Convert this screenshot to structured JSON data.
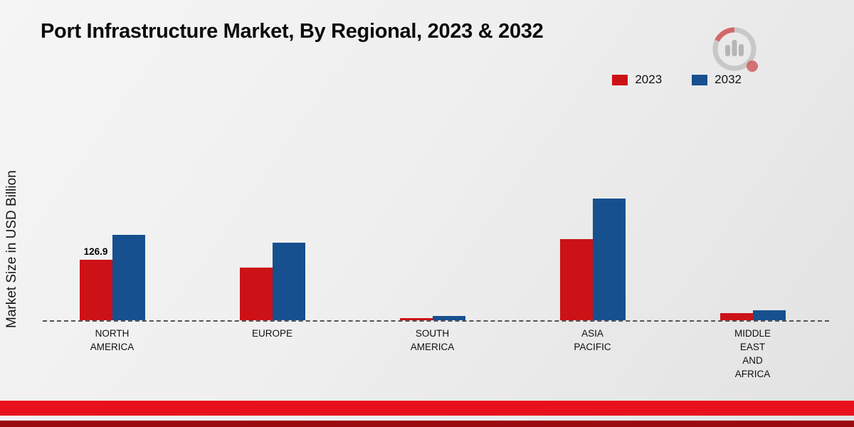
{
  "title": "Port Infrastructure Market, By Regional, 2023 & 2032",
  "y_axis_label": "Market Size in USD Billion",
  "legend": [
    {
      "label": "2023",
      "color": "#cc1216"
    },
    {
      "label": "2032",
      "color": "#17508f"
    }
  ],
  "chart_data": {
    "type": "bar",
    "title": "Port Infrastructure Market, By Regional, 2023 & 2032",
    "ylabel": "Market Size in USD Billion",
    "categories": [
      "NORTH AMERICA",
      "EUROPE",
      "SOUTH AMERICA",
      "ASIA PACIFIC",
      "MIDDLE EAST AND AFRICA"
    ],
    "category_lines": [
      [
        "NORTH",
        "AMERICA"
      ],
      [
        "EUROPE"
      ],
      [
        "SOUTH",
        "AMERICA"
      ],
      [
        "ASIA",
        "PACIFIC"
      ],
      [
        "MIDDLE",
        "EAST",
        "AND",
        "AFRICA"
      ]
    ],
    "series": [
      {
        "name": "2023",
        "color": "#cc1216",
        "values": [
          126.9,
          110,
          4.5,
          170,
          15
        ]
      },
      {
        "name": "2032",
        "color": "#17508f",
        "values": [
          179,
          163,
          9,
          255,
          21
        ]
      }
    ],
    "ylim": [
      0,
      280
    ],
    "grid": false,
    "legend_position": "top-right",
    "baseline_style": "dashed",
    "data_labels": [
      {
        "series": "2023",
        "category_index": 0,
        "text": "126.9"
      }
    ]
  },
  "icons": {
    "logo": "market-research-brand-logo"
  },
  "footer": {
    "band_color": "#e8101c",
    "line_color": "#9a0b0e"
  }
}
